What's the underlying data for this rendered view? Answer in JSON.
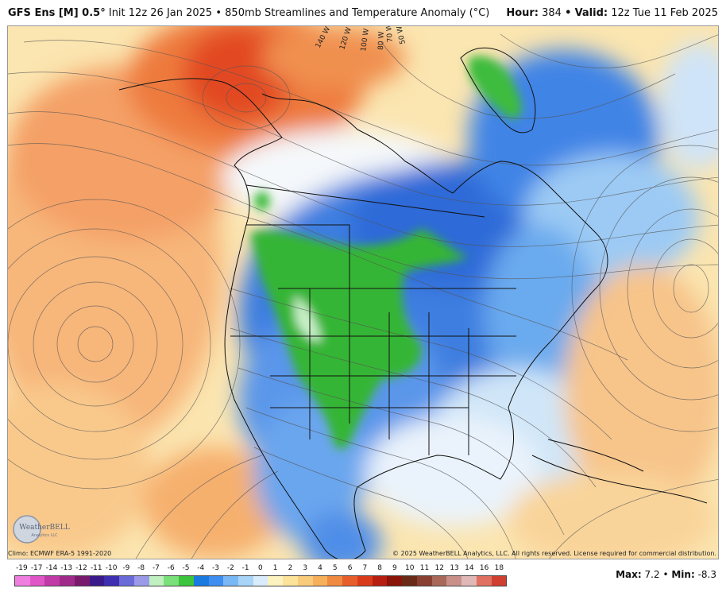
{
  "header": {
    "model": "GFS Ens [M] 0.5",
    "degree_mark": "°",
    "init": "Init 12z 26 Jan 2025",
    "separator": "•",
    "product": "850mb Streamlines and Temperature Anomaly (°C)",
    "hour_label": "Hour:",
    "hour_value": "384",
    "valid_label": "Valid:",
    "valid_value": "12z Tue 11 Feb 2025"
  },
  "footer": {
    "climo": "Climo: ECMWF ERA-5 1991-2020",
    "copyright": "© 2025 WeatherBELL Analytics, LLC. All rights reserved. License required for commercial distribution.",
    "logo_text": "WeatherBELL",
    "logo_sub": "Analytics LLC"
  },
  "map": {
    "longitude_labels": [
      "140 W",
      "120 W",
      "100 W",
      "80 W",
      "70 W",
      "50 W"
    ]
  },
  "legend": {
    "ticks": [
      "-19",
      "-17",
      "-14",
      "-13",
      "-12",
      "-11",
      "-10",
      "-9",
      "-8",
      "-7",
      "-6",
      "-5",
      "-4",
      "-3",
      "-2",
      "-1",
      "0",
      "1",
      "2",
      "3",
      "4",
      "5",
      "6",
      "7",
      "8",
      "9",
      "10",
      "11",
      "12",
      "13",
      "14",
      "16",
      "18"
    ],
    "colors": [
      "#f07de0",
      "#e055c8",
      "#c03aa8",
      "#a02a8a",
      "#7a1a6c",
      "#3a1a8a",
      "#3d2fb0",
      "#6a6ad8",
      "#9a9ae8",
      "#c0f0c0",
      "#7ae07a",
      "#3cc43c",
      "#1a7ae0",
      "#3d8ef0",
      "#7ab8f5",
      "#a8d4f8",
      "#d8ecfc",
      "#fdf3c0",
      "#fbe39a",
      "#f9cc7a",
      "#f6b05a",
      "#f08a40",
      "#e85e2a",
      "#d83a1a",
      "#b81e10",
      "#8a1408",
      "#6a2a18",
      "#8a4030",
      "#a8685a",
      "#c89088",
      "#e0b8b8",
      "#e07060",
      "#d04030"
    ]
  },
  "stats": {
    "max_label": "Max:",
    "max_value": "7.2",
    "separator": "•",
    "min_label": "Min:",
    "min_value": "-8.3"
  }
}
